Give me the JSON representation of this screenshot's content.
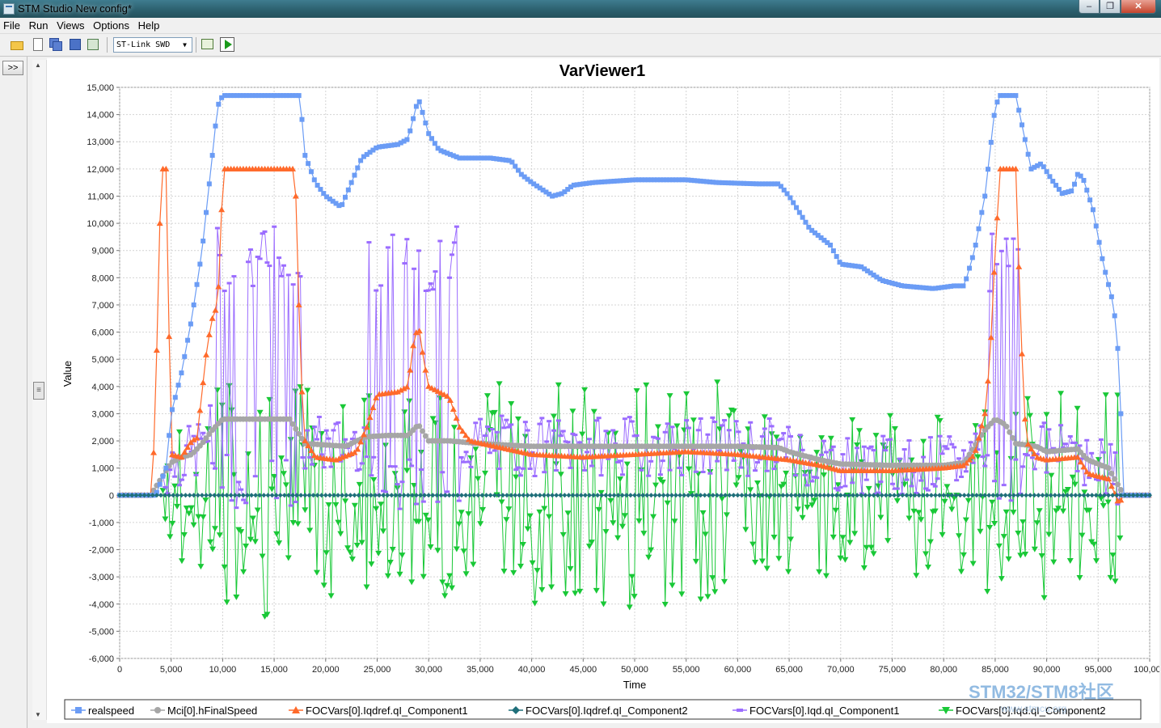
{
  "window": {
    "title": "STM Studio New config*",
    "buttons": [
      "–",
      "❐",
      "✕"
    ]
  },
  "menu": [
    "File",
    "Run",
    "Views",
    "Options",
    "Help"
  ],
  "toolbar": {
    "icons": [
      "open-folder-icon",
      "new-file-icon",
      "save-all-icon",
      "save-icon",
      "export-icon",
      "table-icon",
      "run-icon"
    ],
    "probe_select": "ST-Link SWD"
  },
  "left_strip": {
    "expand_label": ">>"
  },
  "scrollbar": {
    "grip": "≡"
  },
  "watermark": {
    "title": "STM32/STM8社区",
    "url": "www.stmcu.org"
  },
  "colors": {
    "realspeed": "#6b9cf5",
    "hFinalSpeed": "#a6a6a6",
    "Iqdref_c1": "#ff6a2b",
    "Iqdref_c2": "#1f6f7a",
    "Iqd_c1": "#9b6cff",
    "Iqd_c2": "#19c837"
  },
  "chart_data": {
    "type": "line",
    "title": "VarViewer1",
    "xlabel": "Time",
    "ylabel": "Value",
    "xlim": [
      0,
      100000
    ],
    "ylim": [
      -6000,
      15000
    ],
    "xticks": [
      "0",
      "5,000",
      "10,000",
      "15,000",
      "20,000",
      "25,000",
      "30,000",
      "35,000",
      "40,000",
      "45,000",
      "50,000",
      "55,000",
      "60,000",
      "65,000",
      "70,000",
      "75,000",
      "80,000",
      "85,000",
      "90,000",
      "95,000",
      "100,000"
    ],
    "yticks": [
      "15,000",
      "14,000",
      "13,000",
      "12,000",
      "11,000",
      "10,000",
      "9,000",
      "8,000",
      "7,000",
      "6,000",
      "5,000",
      "4,000",
      "3,000",
      "2,000",
      "1,000",
      "0",
      "-1,000",
      "-2,000",
      "-3,000",
      "-4,000",
      "-5,000",
      "-6,000"
    ],
    "grid": true,
    "legend_position": "bottom",
    "series": [
      {
        "name": "realspeed",
        "marker": "square",
        "points": [
          [
            0,
            0
          ],
          [
            3500,
            0
          ],
          [
            4500,
            1000
          ],
          [
            5000,
            3000
          ],
          [
            6000,
            4500
          ],
          [
            7000,
            6500
          ],
          [
            8000,
            9000
          ],
          [
            9000,
            12500
          ],
          [
            9500,
            14300
          ],
          [
            10000,
            14700
          ],
          [
            17500,
            14700
          ],
          [
            18000,
            12500
          ],
          [
            19000,
            11500
          ],
          [
            20000,
            11000
          ],
          [
            21500,
            10600
          ],
          [
            22500,
            11500
          ],
          [
            23500,
            12400
          ],
          [
            25000,
            12800
          ],
          [
            27000,
            12900
          ],
          [
            28000,
            13100
          ],
          [
            29000,
            14600
          ],
          [
            30000,
            13300
          ],
          [
            31000,
            12700
          ],
          [
            33000,
            12400
          ],
          [
            36000,
            12400
          ],
          [
            38000,
            12300
          ],
          [
            39000,
            11800
          ],
          [
            40000,
            11500
          ],
          [
            42000,
            11000
          ],
          [
            43000,
            11100
          ],
          [
            44000,
            11400
          ],
          [
            46000,
            11500
          ],
          [
            50000,
            11600
          ],
          [
            55000,
            11600
          ],
          [
            58000,
            11500
          ],
          [
            62000,
            11450
          ],
          [
            64000,
            11450
          ],
          [
            65000,
            11000
          ],
          [
            67000,
            9800
          ],
          [
            69000,
            9200
          ],
          [
            70000,
            8500
          ],
          [
            72000,
            8400
          ],
          [
            74000,
            7900
          ],
          [
            76000,
            7700
          ],
          [
            79000,
            7600
          ],
          [
            81000,
            7700
          ],
          [
            82000,
            7700
          ],
          [
            83000,
            9000
          ],
          [
            84000,
            11000
          ],
          [
            85000,
            14300
          ],
          [
            85500,
            14700
          ],
          [
            87000,
            14700
          ],
          [
            88000,
            12900
          ],
          [
            88500,
            12000
          ],
          [
            89500,
            12200
          ],
          [
            90500,
            11600
          ],
          [
            91500,
            11100
          ],
          [
            92500,
            11200
          ],
          [
            93000,
            11800
          ],
          [
            93500,
            11700
          ],
          [
            94500,
            10500
          ],
          [
            95500,
            8500
          ],
          [
            96500,
            7000
          ],
          [
            97000,
            5000
          ],
          [
            97500,
            0
          ],
          [
            100000,
            0
          ]
        ]
      },
      {
        "name": "Mci[0].hFinalSpeed",
        "marker": "circle",
        "points": [
          [
            0,
            0
          ],
          [
            3000,
            0
          ],
          [
            4000,
            600
          ],
          [
            5000,
            1200
          ],
          [
            6000,
            1400
          ],
          [
            7000,
            1500
          ],
          [
            8000,
            1900
          ],
          [
            9000,
            2400
          ],
          [
            10000,
            2800
          ],
          [
            16500,
            2800
          ],
          [
            17000,
            2500
          ],
          [
            18000,
            1900
          ],
          [
            22000,
            1800
          ],
          [
            23000,
            2000
          ],
          [
            24000,
            2150
          ],
          [
            26000,
            2200
          ],
          [
            28000,
            2200
          ],
          [
            29000,
            2600
          ],
          [
            30000,
            2000
          ],
          [
            32000,
            2000
          ],
          [
            35000,
            1900
          ],
          [
            40000,
            1800
          ],
          [
            50000,
            1800
          ],
          [
            60000,
            1800
          ],
          [
            64000,
            1750
          ],
          [
            65000,
            1600
          ],
          [
            68000,
            1300
          ],
          [
            70000,
            1150
          ],
          [
            75000,
            1100
          ],
          [
            80000,
            1100
          ],
          [
            82000,
            1200
          ],
          [
            83000,
            1800
          ],
          [
            84000,
            2400
          ],
          [
            85000,
            2800
          ],
          [
            86000,
            2600
          ],
          [
            87000,
            1900
          ],
          [
            89000,
            1800
          ],
          [
            90000,
            1600
          ],
          [
            93000,
            1700
          ],
          [
            94000,
            1300
          ],
          [
            96000,
            1000
          ],
          [
            97500,
            0
          ],
          [
            100000,
            0
          ]
        ]
      },
      {
        "name": "FOCVars[0].Iqdref.qI_Component1",
        "marker": "triangle-up",
        "points": [
          [
            0,
            0
          ],
          [
            3000,
            0
          ],
          [
            3200,
            600
          ],
          [
            3500,
            3500
          ],
          [
            3800,
            9000
          ],
          [
            4100,
            12000
          ],
          [
            4500,
            12000
          ],
          [
            4700,
            8000
          ],
          [
            5000,
            1500
          ],
          [
            6000,
            1400
          ],
          [
            7000,
            2000
          ],
          [
            7500,
            2100
          ],
          [
            8000,
            3800
          ],
          [
            8500,
            5500
          ],
          [
            9000,
            6500
          ],
          [
            9500,
            7000
          ],
          [
            9800,
            9000
          ],
          [
            10000,
            12000
          ],
          [
            17000,
            12000
          ],
          [
            17300,
            9000
          ],
          [
            17500,
            5000
          ],
          [
            18000,
            2000
          ],
          [
            19000,
            1400
          ],
          [
            21000,
            1300
          ],
          [
            23000,
            1600
          ],
          [
            24000,
            2500
          ],
          [
            25000,
            3700
          ],
          [
            27000,
            3800
          ],
          [
            28000,
            4000
          ],
          [
            28500,
            5500
          ],
          [
            29000,
            6300
          ],
          [
            29500,
            5000
          ],
          [
            30000,
            4000
          ],
          [
            32000,
            3600
          ],
          [
            33000,
            2500
          ],
          [
            34000,
            2000
          ],
          [
            40000,
            1500
          ],
          [
            45000,
            1400
          ],
          [
            50000,
            1500
          ],
          [
            55000,
            1600
          ],
          [
            60000,
            1500
          ],
          [
            65000,
            1300
          ],
          [
            68000,
            1100
          ],
          [
            70000,
            900
          ],
          [
            75000,
            900
          ],
          [
            80000,
            1000
          ],
          [
            82000,
            1100
          ],
          [
            83000,
            1500
          ],
          [
            84000,
            3000
          ],
          [
            84500,
            5000
          ],
          [
            85000,
            9000
          ],
          [
            85500,
            12000
          ],
          [
            87000,
            12000
          ],
          [
            87500,
            6000
          ],
          [
            88000,
            2000
          ],
          [
            89000,
            1400
          ],
          [
            90000,
            1300
          ],
          [
            93000,
            1400
          ],
          [
            94000,
            800
          ],
          [
            96000,
            600
          ],
          [
            97000,
            -300
          ],
          [
            97500,
            0
          ],
          [
            100000,
            0
          ]
        ]
      },
      {
        "name": "FOCVars[0].Iqdref.qI_Component2",
        "marker": "diamond",
        "points": [
          [
            0,
            0
          ],
          [
            100000,
            0
          ]
        ]
      },
      {
        "name": "FOCVars[0].Iqd.qI_Component1",
        "marker": "bar",
        "points": []
      },
      {
        "name": "FOCVars[0].Iqd.qI_Component2",
        "marker": "triangle-down",
        "points": []
      }
    ]
  }
}
